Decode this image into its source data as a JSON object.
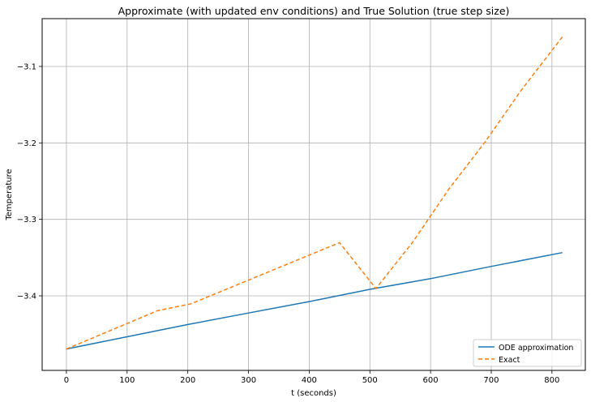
{
  "chart_data": {
    "type": "line",
    "title": "Approximate (with updated env conditions) and True Solution (true step size)",
    "xlabel": "t (seconds)",
    "ylabel": "Temperature",
    "xlim": [
      -40,
      855
    ],
    "ylim": [
      -3.4975,
      -3.0375
    ],
    "x_ticks": [
      0,
      100,
      200,
      300,
      400,
      500,
      600,
      700,
      800
    ],
    "x_tick_labels": [
      "0",
      "100",
      "200",
      "300",
      "400",
      "500",
      "600",
      "700",
      "800"
    ],
    "y_ticks": [
      -3.4,
      -3.3,
      -3.2,
      -3.1
    ],
    "y_tick_labels": [
      "−3.4",
      "−3.3",
      "−3.2",
      "−3.1"
    ],
    "grid": true,
    "legend_position": "lower-right",
    "series": [
      {
        "name": "ODE approximation",
        "color": "#1f77b4",
        "style": "solid",
        "x": [
          0,
          100,
          200,
          300,
          400,
          500,
          600,
          700,
          817
        ],
        "y": [
          -3.4695,
          -3.4535,
          -3.4375,
          -3.4225,
          -3.4075,
          -3.3915,
          -3.3775,
          -3.3615,
          -3.3435
        ]
      },
      {
        "name": "Exact",
        "color": "#ff7f0e",
        "style": "dashed",
        "x": [
          0,
          150,
          205,
          450,
          510,
          570,
          630,
          690,
          750,
          817
        ],
        "y": [
          -3.4695,
          -3.4195,
          -3.4105,
          -3.3305,
          -3.3905,
          -3.3305,
          -3.2605,
          -3.1985,
          -3.1305,
          -3.0615
        ]
      }
    ]
  }
}
